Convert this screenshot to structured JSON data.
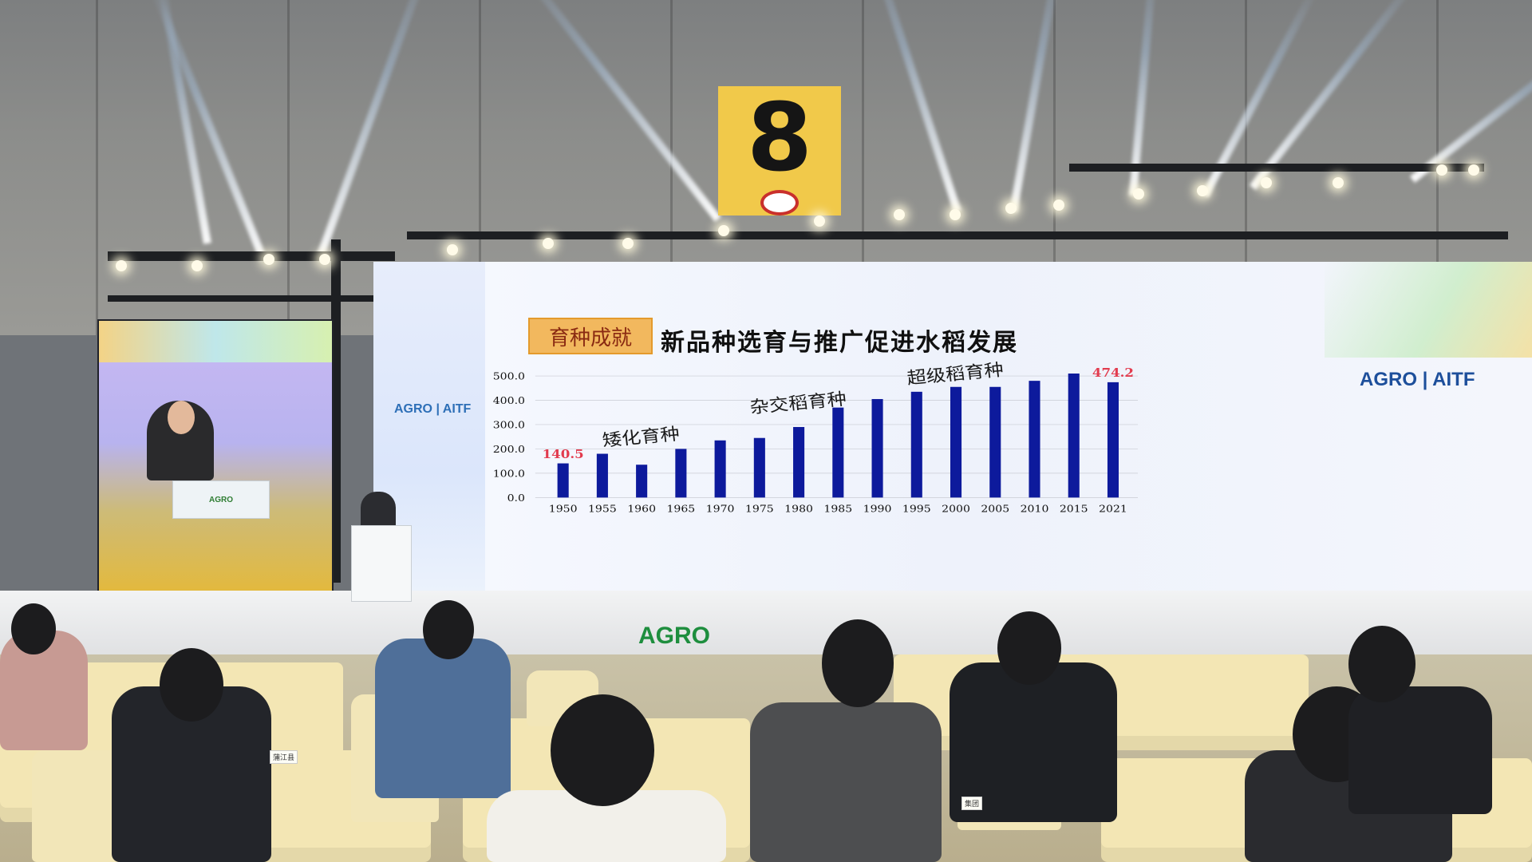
{
  "hall_sign": {
    "number": "8",
    "icon": "no-smoking-icon"
  },
  "left_screen": {
    "lectern_text": "AGRO"
  },
  "slide": {
    "tag": "育种成就",
    "title": "新品种选育与推广促进水稻发展",
    "logo_left": "AGRO | AITF",
    "logo_right": "AGRO | AITF"
  },
  "stage": {
    "brand": "AGRO"
  },
  "nameplates": [
    "蒲江县",
    "集团"
  ],
  "chart_data": {
    "type": "bar",
    "categories": [
      "1950",
      "1955",
      "1960",
      "1965",
      "1970",
      "1975",
      "1980",
      "1985",
      "1990",
      "1995",
      "2000",
      "2005",
      "2010",
      "2015",
      "2021"
    ],
    "values": [
      140.5,
      180,
      135,
      200,
      235,
      245,
      290,
      370,
      405,
      435,
      455,
      455,
      480,
      510,
      474.2
    ],
    "ylim": [
      0,
      500
    ],
    "yticks": [
      "0.0",
      "100.0",
      "200.0",
      "300.0",
      "400.0",
      "500.0"
    ],
    "annotations": [
      {
        "text": "矮化育种"
      },
      {
        "text": "杂交稻育种"
      },
      {
        "text": "超级稻育种"
      }
    ],
    "data_labels": [
      {
        "category": "1950",
        "text": "140.5",
        "color": "#e23b4e"
      },
      {
        "category": "2021",
        "text": "474.2",
        "color": "#e23b4e"
      }
    ],
    "bar_color": "#0d1a9c",
    "grid": true
  }
}
